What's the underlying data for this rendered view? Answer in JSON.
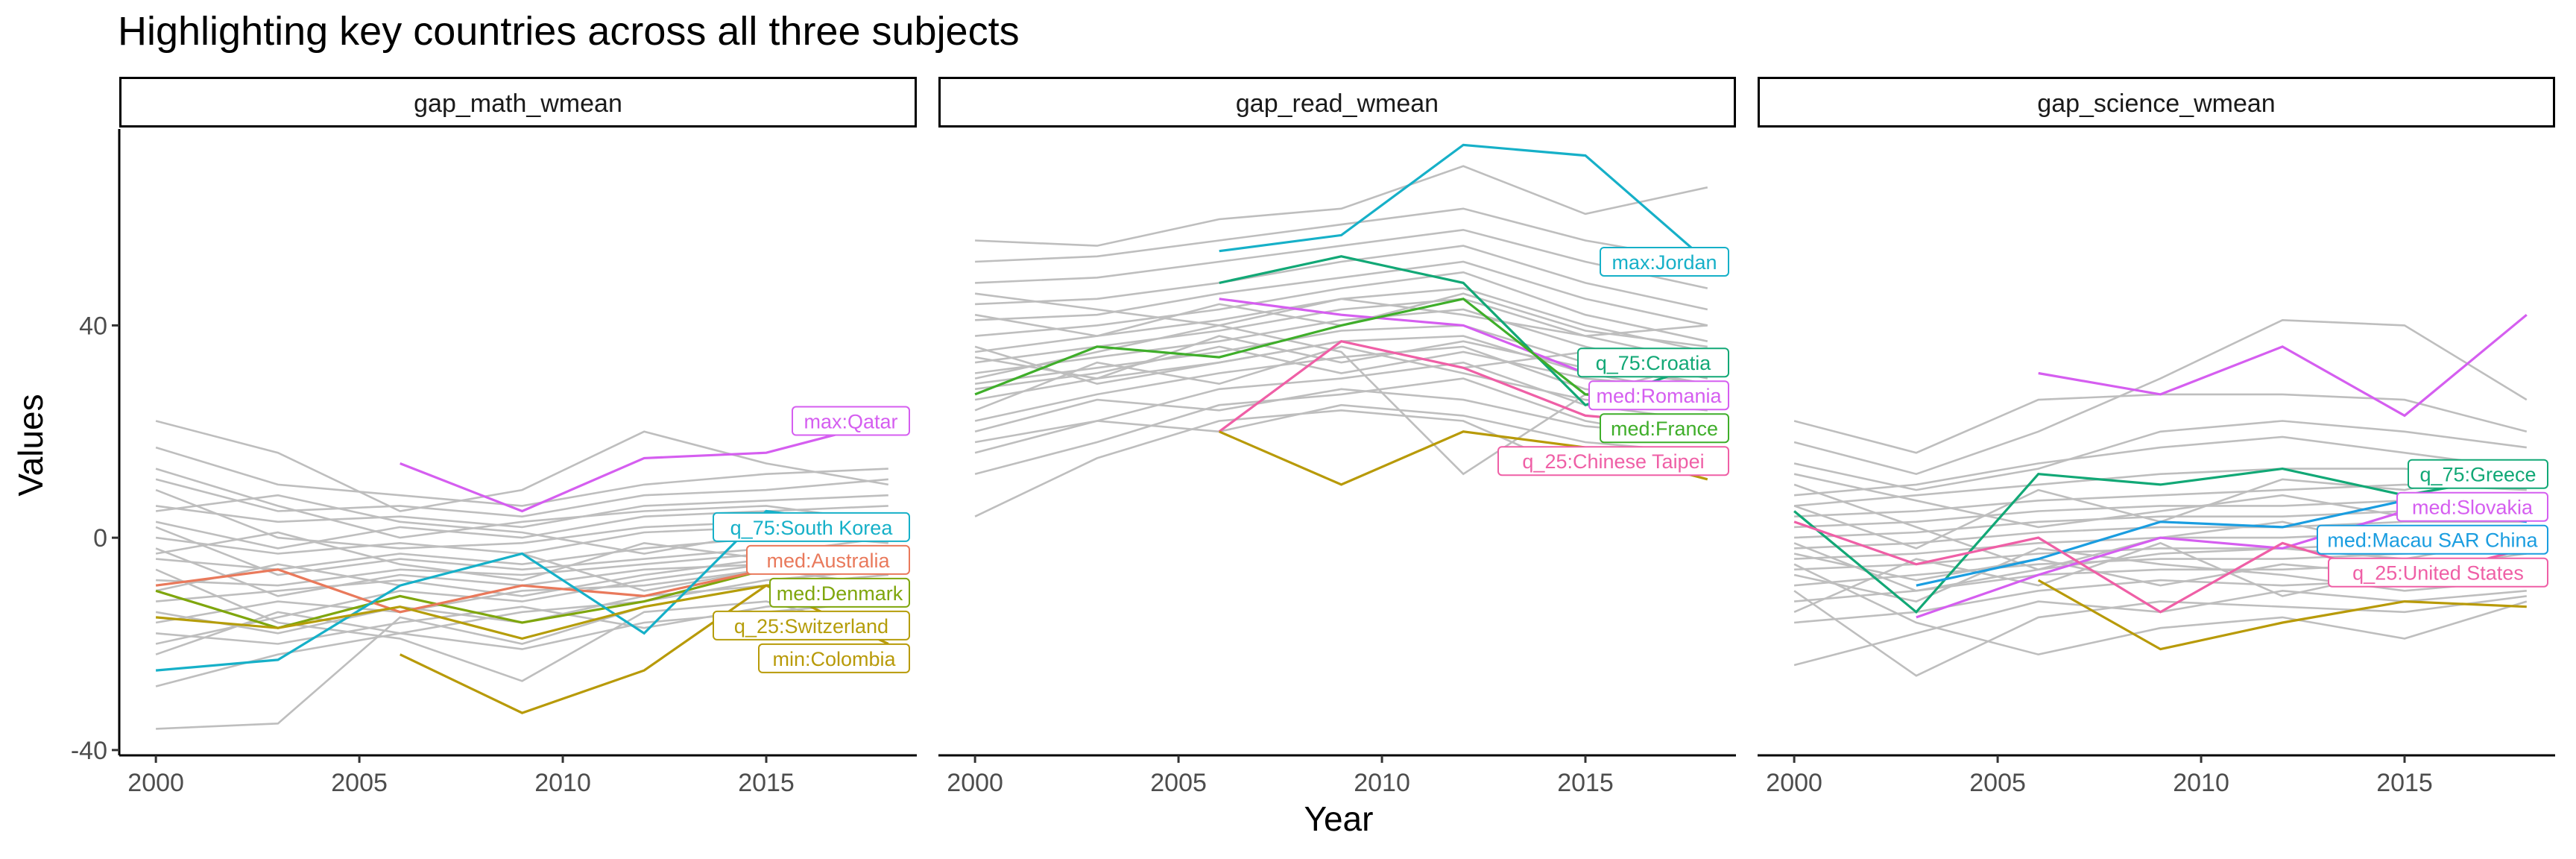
{
  "chart_data": {
    "type": "line",
    "title": "Highlighting key countries across all three subjects",
    "xlabel": "Year",
    "ylabel": "Values",
    "xlim": [
      1999.1,
      2018.7
    ],
    "ylim": [
      -41,
      77
    ],
    "x_ticks": [
      2000,
      2005,
      2010,
      2015
    ],
    "y_ticks": [
      -40,
      0,
      40
    ],
    "grid": false,
    "background_color": "#bebebe",
    "facets": [
      {
        "strip_label": "gap_math_wmean",
        "highlighted": [
          {
            "label": "max:Qatar",
            "color": "#d55ef0",
            "x": [
              2006,
              2009,
              2012,
              2015,
              2018
            ],
            "y": [
              14,
              5,
              15,
              16,
              22
            ]
          },
          {
            "label": "med:Denmark",
            "color": "#7fa60d",
            "x": [
              2000,
              2003,
              2006,
              2009,
              2012,
              2015,
              2018
            ],
            "y": [
              -10,
              -17,
              -11,
              -16,
              -12,
              -6,
              -4
            ]
          },
          {
            "label": "med:Australia",
            "color": "#e9795b",
            "x": [
              2000,
              2003,
              2006,
              2009,
              2012,
              2015,
              2018
            ],
            "y": [
              -9,
              -6,
              -14,
              -9,
              -11,
              -6,
              -3
            ]
          },
          {
            "label": "q_75:South Korea",
            "color": "#16b0c8",
            "x": [
              2000,
              2003,
              2006,
              2009,
              2012,
              2015,
              2018
            ],
            "y": [
              -25,
              -23,
              -9,
              -3,
              -18,
              5,
              2
            ]
          },
          {
            "label": "q_25:Switzerland",
            "color": "#b59d0a",
            "x": [
              2000,
              2003,
              2006,
              2009,
              2012,
              2015,
              2018
            ],
            "y": [
              -15,
              -17,
              -13,
              -19,
              -13,
              -9,
              -8
            ]
          },
          {
            "label": "min:Colombia",
            "color": "#b89a08",
            "x": [
              2006,
              2009,
              2012,
              2015,
              2018
            ],
            "y": [
              -22,
              -33,
              -25,
              -9,
              -20
            ]
          }
        ],
        "background_series": [
          [
            -36,
            -35,
            -15,
            -20,
            -13,
            -9,
            -7
          ],
          [
            -28,
            -22,
            -18,
            -14,
            -12,
            -8,
            -6
          ],
          [
            -20,
            -15,
            -10,
            -12,
            -8,
            -5,
            -3
          ],
          [
            -16,
            -12,
            -14,
            -10,
            -9,
            -6,
            -4
          ],
          [
            -12,
            -10,
            -8,
            -11,
            -7,
            -4,
            -2
          ],
          [
            -8,
            -9,
            -6,
            -7,
            -5,
            -3,
            0
          ],
          [
            -4,
            -6,
            -3,
            -5,
            -2,
            0,
            2
          ],
          [
            0,
            -3,
            -1,
            -3,
            1,
            2,
            4
          ],
          [
            3,
            -2,
            2,
            0,
            4,
            5,
            6
          ],
          [
            6,
            3,
            4,
            2,
            6,
            7,
            8
          ],
          [
            11,
            5,
            6,
            4,
            8,
            9,
            11
          ],
          [
            17,
            10,
            8,
            6,
            10,
            12,
            13
          ],
          [
            22,
            16,
            5,
            9,
            20,
            14,
            10
          ],
          [
            -14,
            -18,
            -13,
            -16,
            -11,
            -9,
            -10
          ],
          [
            -6,
            -16,
            -19,
            -27,
            -14,
            -12,
            -18
          ],
          [
            -2,
            -11,
            -7,
            -9,
            -6,
            -5,
            -7
          ],
          [
            2,
            -7,
            -4,
            -6,
            -4,
            -2,
            -3
          ],
          [
            9,
            0,
            -2,
            -1,
            2,
            3,
            1
          ],
          [
            13,
            6,
            0,
            3,
            5,
            6,
            3
          ],
          [
            -18,
            -20,
            -16,
            -13,
            -17,
            -13,
            -11
          ],
          [
            -22,
            -14,
            -18,
            -21,
            -16,
            -14,
            -12
          ],
          [
            -10,
            -5,
            -9,
            -3,
            -10,
            -6,
            -9
          ],
          [
            -3,
            1,
            -5,
            -8,
            -1,
            -4,
            -5
          ],
          [
            5,
            8,
            3,
            1,
            -3,
            1,
            -1
          ]
        ]
      },
      {
        "strip_label": "gap_read_wmean",
        "highlighted": [
          {
            "label": "max:Jordan",
            "color": "#16b0c8",
            "x": [
              2006,
              2009,
              2012,
              2015,
              2018
            ],
            "y": [
              54,
              57,
              74,
              72,
              52
            ]
          },
          {
            "label": "q_75:Croatia",
            "color": "#12a876",
            "x": [
              2006,
              2009,
              2012,
              2015,
              2018
            ],
            "y": [
              48,
              53,
              48,
              25,
              33
            ]
          },
          {
            "label": "med:Romania",
            "color": "#d55ef0",
            "x": [
              2006,
              2009,
              2012,
              2015,
              2018
            ],
            "y": [
              45,
              42,
              40,
              31,
              32
            ]
          },
          {
            "label": "med:France",
            "color": "#3fae2a",
            "x": [
              2000,
              2003,
              2006,
              2009,
              2012,
              2015,
              2018
            ],
            "y": [
              27,
              36,
              34,
              40,
              45,
              27,
              25
            ]
          },
          {
            "label": "q_25:Chinese Taipei",
            "color": "#ef5fa6",
            "x": [
              2006,
              2009,
              2012,
              2015,
              2018
            ],
            "y": [
              20,
              37,
              32,
              23,
              21
            ]
          },
          {
            "label": "",
            "color": "#b89a08",
            "x": [
              2006,
              2009,
              2012,
              2015,
              2018
            ],
            "y": [
              20,
              10,
              20,
              17,
              11
            ]
          }
        ],
        "background_series": [
          [
            4,
            15,
            22,
            24,
            22,
            12,
            14
          ],
          [
            12,
            18,
            25,
            27,
            30,
            22,
            18
          ],
          [
            18,
            22,
            28,
            30,
            33,
            25,
            22
          ],
          [
            22,
            27,
            31,
            34,
            36,
            28,
            25
          ],
          [
            26,
            30,
            33,
            37,
            38,
            31,
            27
          ],
          [
            29,
            32,
            35,
            39,
            40,
            33,
            29
          ],
          [
            31,
            34,
            37,
            41,
            43,
            36,
            31
          ],
          [
            33,
            36,
            39,
            43,
            45,
            38,
            33
          ],
          [
            35,
            38,
            41,
            45,
            47,
            40,
            35
          ],
          [
            38,
            40,
            43,
            47,
            50,
            42,
            37
          ],
          [
            41,
            42,
            46,
            49,
            52,
            45,
            40
          ],
          [
            44,
            45,
            48,
            52,
            55,
            48,
            43
          ],
          [
            48,
            49,
            52,
            55,
            58,
            52,
            47
          ],
          [
            52,
            53,
            56,
            59,
            62,
            56,
            52
          ],
          [
            56,
            55,
            60,
            62,
            70,
            61,
            66
          ],
          [
            24,
            33,
            29,
            36,
            31,
            26,
            24
          ],
          [
            28,
            31,
            36,
            31,
            35,
            30,
            28
          ],
          [
            36,
            29,
            33,
            37,
            32,
            35,
            30
          ],
          [
            20,
            26,
            24,
            28,
            26,
            21,
            19
          ],
          [
            42,
            38,
            44,
            40,
            46,
            39,
            36
          ],
          [
            30,
            35,
            40,
            35,
            12,
            27,
            33
          ],
          [
            16,
            22,
            20,
            25,
            23,
            18,
            16
          ],
          [
            46,
            43,
            40,
            45,
            42,
            38,
            40
          ],
          [
            34,
            30,
            38,
            33,
            37,
            32,
            29
          ]
        ]
      },
      {
        "strip_label": "gap_science_wmean",
        "highlighted": [
          {
            "label": "",
            "color": "#d55ef0",
            "x": [
              2006,
              2009,
              2012,
              2015,
              2018
            ],
            "y": [
              31,
              27,
              36,
              23,
              42
            ]
          },
          {
            "label": "q_75:Greece",
            "color": "#12a876",
            "x": [
              2000,
              2003,
              2006,
              2009,
              2012,
              2015,
              2018
            ],
            "y": [
              5,
              -14,
              12,
              10,
              13,
              8,
              12
            ]
          },
          {
            "label": "med:Slovakia",
            "color": "#d55ef0",
            "x": [
              2003,
              2006,
              2009,
              2012,
              2015,
              2018
            ],
            "y": [
              -15,
              -7,
              0,
              -2,
              5,
              7
            ]
          },
          {
            "label": "med:Macau SAR China",
            "color": "#1a9de0",
            "x": [
              2003,
              2006,
              2009,
              2012,
              2015,
              2018
            ],
            "y": [
              -9,
              -4,
              3,
              2,
              7,
              3
            ]
          },
          {
            "label": "q_25:United States",
            "color": "#ef5fa6",
            "x": [
              2000,
              2003,
              2006,
              2009,
              2012,
              2015,
              2018
            ],
            "y": [
              3,
              -5,
              0,
              -14,
              -1,
              -8,
              -2
            ]
          },
          {
            "label": "",
            "color": "#b89a08",
            "x": [
              2006,
              2009,
              2012,
              2015,
              2018
            ],
            "y": [
              -8,
              -21,
              -16,
              -12,
              -13
            ]
          }
        ],
        "background_series": [
          [
            -24,
            -18,
            -12,
            -14,
            -10,
            -12,
            -10
          ],
          [
            -16,
            -14,
            -10,
            -8,
            -9,
            -8,
            -7
          ],
          [
            -12,
            -10,
            -7,
            -6,
            -6,
            -5,
            -4
          ],
          [
            -9,
            -7,
            -5,
            -4,
            -4,
            -3,
            -2
          ],
          [
            -6,
            -5,
            -3,
            -2,
            -2,
            -1,
            0
          ],
          [
            -4,
            -3,
            -1,
            0,
            0,
            1,
            1
          ],
          [
            -2,
            -1,
            1,
            2,
            2,
            3,
            3
          ],
          [
            0,
            1,
            3,
            4,
            4,
            5,
            5
          ],
          [
            2,
            3,
            5,
            6,
            6,
            7,
            7
          ],
          [
            4,
            5,
            7,
            8,
            9,
            10,
            9
          ],
          [
            6,
            8,
            10,
            12,
            13,
            13,
            11
          ],
          [
            8,
            10,
            14,
            17,
            19,
            16,
            13
          ],
          [
            14,
            9,
            13,
            20,
            22,
            20,
            17
          ],
          [
            22,
            16,
            26,
            27,
            27,
            26,
            20
          ],
          [
            18,
            12,
            20,
            30,
            41,
            40,
            26
          ],
          [
            -10,
            -26,
            -15,
            -12,
            -13,
            -14,
            -11
          ],
          [
            -3,
            -8,
            -4,
            -9,
            -5,
            -7,
            -6
          ],
          [
            10,
            2,
            -6,
            0,
            3,
            -2,
            2
          ],
          [
            -7,
            -12,
            -2,
            -5,
            -7,
            -10,
            -8
          ],
          [
            -14,
            -4,
            -9,
            -1,
            -11,
            -6,
            -3
          ],
          [
            12,
            7,
            2,
            5,
            8,
            4,
            6
          ],
          [
            -5,
            -16,
            -22,
            -17,
            -15,
            -19,
            -12
          ],
          [
            6,
            -2,
            9,
            3,
            11,
            9,
            14
          ],
          [
            -1,
            -10,
            -6,
            -3,
            -2,
            -4,
            0
          ]
        ]
      }
    ]
  }
}
